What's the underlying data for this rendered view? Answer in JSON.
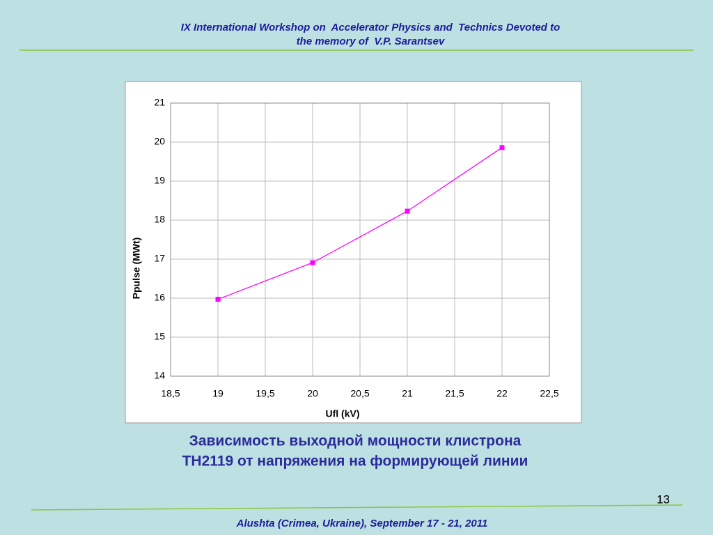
{
  "header": {
    "title": [
      "IX International Workshop on  Accelerator Physics and  Technics Devoted to",
      "the memory of  V.P. Sarantsev"
    ]
  },
  "chart_data": {
    "type": "line",
    "x_label": "Ufl (kV)",
    "y_label": "Ppulse (MWt)",
    "x": [
      19,
      20,
      21,
      22
    ],
    "values": [
      15.97,
      16.91,
      18.23,
      19.86
    ],
    "color": "#ff00ff",
    "xlim": [
      18.5,
      22.5
    ],
    "xticks": [
      {
        "value": 18.5,
        "label": "18,5"
      },
      19,
      {
        "value": 19.5,
        "label": "19,5"
      },
      20,
      {
        "value": 20.5,
        "label": "20,5"
      },
      21,
      {
        "value": 21.5,
        "label": "21,5"
      },
      22,
      {
        "value": 22.5,
        "label": "22,5"
      }
    ],
    "ylim": [
      14,
      21
    ],
    "yticks": [
      14,
      15,
      16,
      17,
      18,
      19,
      20,
      21
    ],
    "grid": true
  },
  "caption": [
    "Зависимость выходной мощности клистрона",
    "ТН2119 от напряжения на формирующей линии"
  ],
  "page_number": "13",
  "footer": "Alushta (Crimea, Ukraine), September 17 - 21, 2011"
}
